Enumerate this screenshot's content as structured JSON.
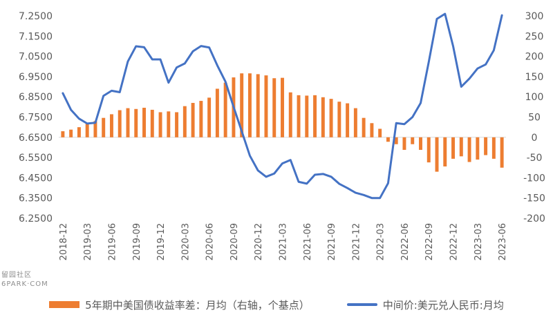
{
  "watermark": {
    "line1": "留园社区",
    "line2": "6PARK·COM"
  },
  "colors": {
    "bars": "#ED7D31",
    "line": "#4472C4",
    "axis_text": "#595959",
    "grid": "#D9D9D9"
  },
  "chart_data": {
    "type": "bar+line",
    "categories": [
      "2018-12",
      "2019-01",
      "2019-02",
      "2019-03",
      "2019-04",
      "2019-05",
      "2019-06",
      "2019-07",
      "2019-08",
      "2019-09",
      "2019-10",
      "2019-11",
      "2019-12",
      "2020-01",
      "2020-02",
      "2020-03",
      "2020-04",
      "2020-05",
      "2020-06",
      "2020-07",
      "2020-08",
      "2020-09",
      "2020-10",
      "2020-11",
      "2020-12",
      "2021-01",
      "2021-02",
      "2021-03",
      "2021-04",
      "2021-05",
      "2021-06",
      "2021-07",
      "2021-08",
      "2021-09",
      "2021-10",
      "2021-11",
      "2021-12",
      "2022-01",
      "2022-02",
      "2022-03",
      "2022-04",
      "2022-05",
      "2022-06",
      "2022-07",
      "2022-08",
      "2022-09",
      "2022-10",
      "2022-11",
      "2022-12",
      "2023-01",
      "2023-02",
      "2023-03",
      "2023-04",
      "2023-05",
      "2023-06"
    ],
    "xtick_labels": [
      "2018-12",
      "2019-03",
      "2019-06",
      "2019-09",
      "2019-12",
      "2020-03",
      "2020-06",
      "2020-09",
      "2020-12",
      "2021-03",
      "2021-06",
      "2021-09",
      "2021-12",
      "2022-03",
      "2022-06",
      "2022-09",
      "2022-12",
      "2023-03",
      "2023-06"
    ],
    "xtick_every": 3,
    "left_axis": {
      "min": 6.25,
      "max": 7.25,
      "ticks": [
        "6.2500",
        "6.3500",
        "6.4500",
        "6.5500",
        "6.6500",
        "6.7500",
        "6.8500",
        "6.9500",
        "7.0500",
        "7.1500",
        "7.2500"
      ]
    },
    "right_axis": {
      "min": -200,
      "max": 300,
      "ticks": [
        "-200",
        "-150",
        "-100",
        "-50",
        "0",
        "50",
        "100",
        "150",
        "200",
        "250",
        "300"
      ]
    },
    "grid": false,
    "legend_position": "bottom",
    "series": [
      {
        "name": "5年期中美国债收益率差：月均（右轴，个基点）",
        "type": "bar",
        "axis": "right",
        "values": [
          15,
          19,
          25,
          33,
          40,
          48,
          57,
          67,
          72,
          70,
          73,
          68,
          62,
          64,
          62,
          77,
          85,
          90,
          98,
          120,
          135,
          148,
          158,
          158,
          156,
          153,
          146,
          147,
          111,
          104,
          103,
          104,
          99,
          95,
          88,
          84,
          72,
          48,
          35,
          21,
          -11,
          -17,
          -31,
          -17,
          -31,
          -62,
          -85,
          -72,
          -53,
          -47,
          -61,
          -55,
          -44,
          -53,
          -75
        ]
      },
      {
        "name": "中间价:美元兑人民币:月均",
        "type": "line",
        "axis": "left",
        "values": [
          6.868,
          6.786,
          6.742,
          6.718,
          6.722,
          6.855,
          6.88,
          6.873,
          7.025,
          7.1,
          7.095,
          7.035,
          7.035,
          6.92,
          6.995,
          7.015,
          7.075,
          7.101,
          7.094,
          7.005,
          6.925,
          6.8,
          6.68,
          6.559,
          6.486,
          6.455,
          6.471,
          6.521,
          6.538,
          6.43,
          6.421,
          6.465,
          6.469,
          6.455,
          6.42,
          6.399,
          6.376,
          6.365,
          6.35,
          6.35,
          6.423,
          6.72,
          6.715,
          6.75,
          6.819,
          7.022,
          7.235,
          7.26,
          7.1,
          6.9,
          6.94,
          6.99,
          7.01,
          7.08,
          7.253
        ]
      }
    ]
  }
}
